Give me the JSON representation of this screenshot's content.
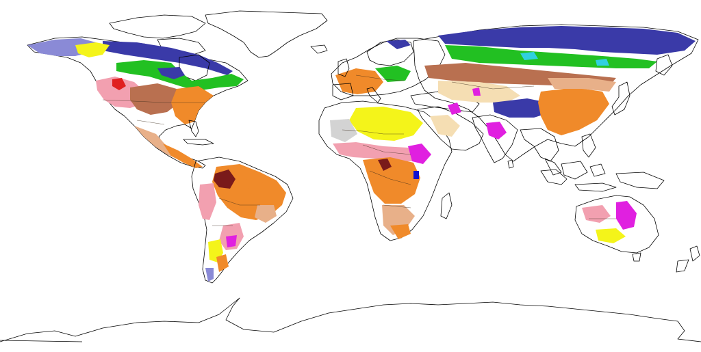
{
  "map": {
    "projection": "equirectangular",
    "colors": {
      "background": "#ffffff",
      "outline": "#000000",
      "greenland": "#d3d3d3",
      "tundra_blue": "#3a3aa8",
      "tundra_lavender": "#8a8ad6",
      "boreal_green": "#22c022",
      "forest_orange": "#f08a2a",
      "savanna_tan": "#e8b089",
      "grassland_pink": "#f2a0b0",
      "desert_yellow": "#f4f41a",
      "desert_cream": "#f5deb3",
      "steppe_brown": "#b97050",
      "wetland_magenta": "#e020e0",
      "maroon": "#7a1a1a",
      "cyan": "#30d0e0",
      "red": "#e02020",
      "lake_blue": "#1010d0"
    }
  }
}
